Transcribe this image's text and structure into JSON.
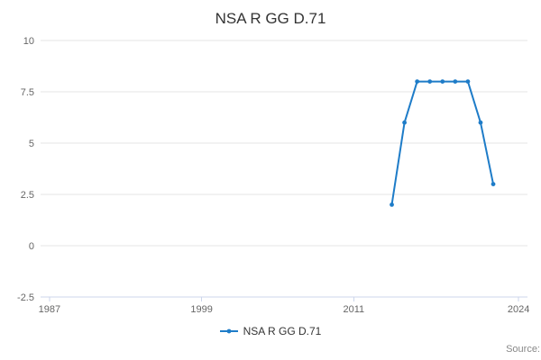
{
  "title": "NSA R GG D.71",
  "legend": {
    "label": "NSA R GG D.71"
  },
  "source_label": "Source:",
  "colors": {
    "series": "#1e7cc8",
    "grid": "#e6e6e6",
    "axis_line": "#ccd6eb",
    "tick_label": "#666666",
    "title_color": "#333333",
    "legend_text": "#333333",
    "source_text": "#888888"
  },
  "chart_data": {
    "type": "line",
    "title": "NSA R GG D.71",
    "series": [
      {
        "name": "NSA R GG D.71",
        "x": [
          2014,
          2015,
          2016,
          2017,
          2018,
          2019,
          2020,
          2021,
          2022
        ],
        "values": [
          2,
          6,
          8,
          8,
          8,
          8,
          8,
          6,
          3
        ]
      }
    ],
    "x_tick_labels": [
      1987,
      1999,
      2011,
      2024
    ],
    "y_tick_labels": [
      10,
      7.5,
      5,
      2.5,
      0,
      -2.5
    ],
    "xlim": [
      1986.3,
      2024.7
    ],
    "ylim": [
      -2.5,
      10
    ],
    "xlabel": "",
    "ylabel": "",
    "grid": "horizontal",
    "markers": true,
    "legend_position": "bottom"
  }
}
